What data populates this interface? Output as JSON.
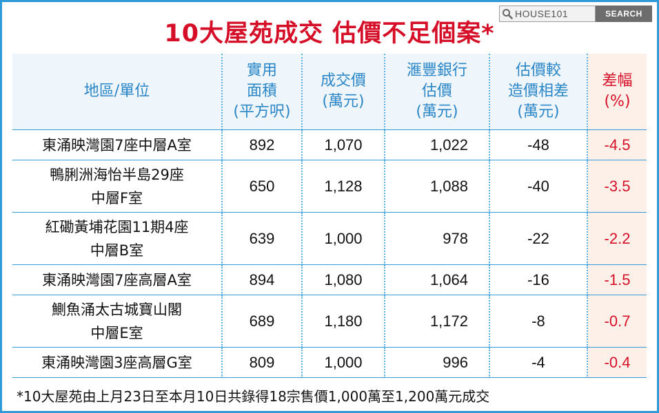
{
  "title": "10大屋苑成交  估價不足個案*",
  "search": {
    "text": "HOUSE101",
    "button": "SEARCH"
  },
  "headers": {
    "col1": [
      "地區/單位"
    ],
    "col2": [
      "實用",
      "面積",
      "(平方呎)"
    ],
    "col3": [
      "成交價",
      "(萬元)"
    ],
    "col4": [
      "滙豐銀行",
      "估價",
      "(萬元)"
    ],
    "col5": [
      "估價較",
      "造價相差",
      "(萬元)"
    ],
    "col6": [
      "差幅",
      "(%)"
    ]
  },
  "rows": [
    {
      "name": [
        "東涌映灣園7座中層A室"
      ],
      "area": "892",
      "price": "1,070",
      "valuation": "1,022",
      "gap": "-48",
      "pct": "-4.5"
    },
    {
      "name": [
        "鴨脷洲海怡半島29座",
        "中層F室"
      ],
      "area": "650",
      "price": "1,128",
      "valuation": "1,088",
      "gap": "-40",
      "pct": "-3.5"
    },
    {
      "name": [
        "紅磡黃埔花園11期4座",
        "中層B室"
      ],
      "area": "639",
      "price": "1,000",
      "valuation": "978",
      "gap": "-22",
      "pct": "-2.2"
    },
    {
      "name": [
        "東涌映灣園7座高層A室"
      ],
      "area": "894",
      "price": "1,080",
      "valuation": "1,064",
      "gap": "-16",
      "pct": "-1.5"
    },
    {
      "name": [
        "鰂魚涌太古城寶山閣",
        "中層E室"
      ],
      "area": "689",
      "price": "1,180",
      "valuation": "1,172",
      "gap": "-8",
      "pct": "-0.7"
    },
    {
      "name": [
        "東涌映灣園3座高層G室"
      ],
      "area": "809",
      "price": "1,000",
      "valuation": "996",
      "gap": "-4",
      "pct": "-0.4"
    }
  ],
  "footnote": "*10大屋苑由上月23日至本月10日共錄得18宗售價1,000萬至1,200萬元成交"
}
